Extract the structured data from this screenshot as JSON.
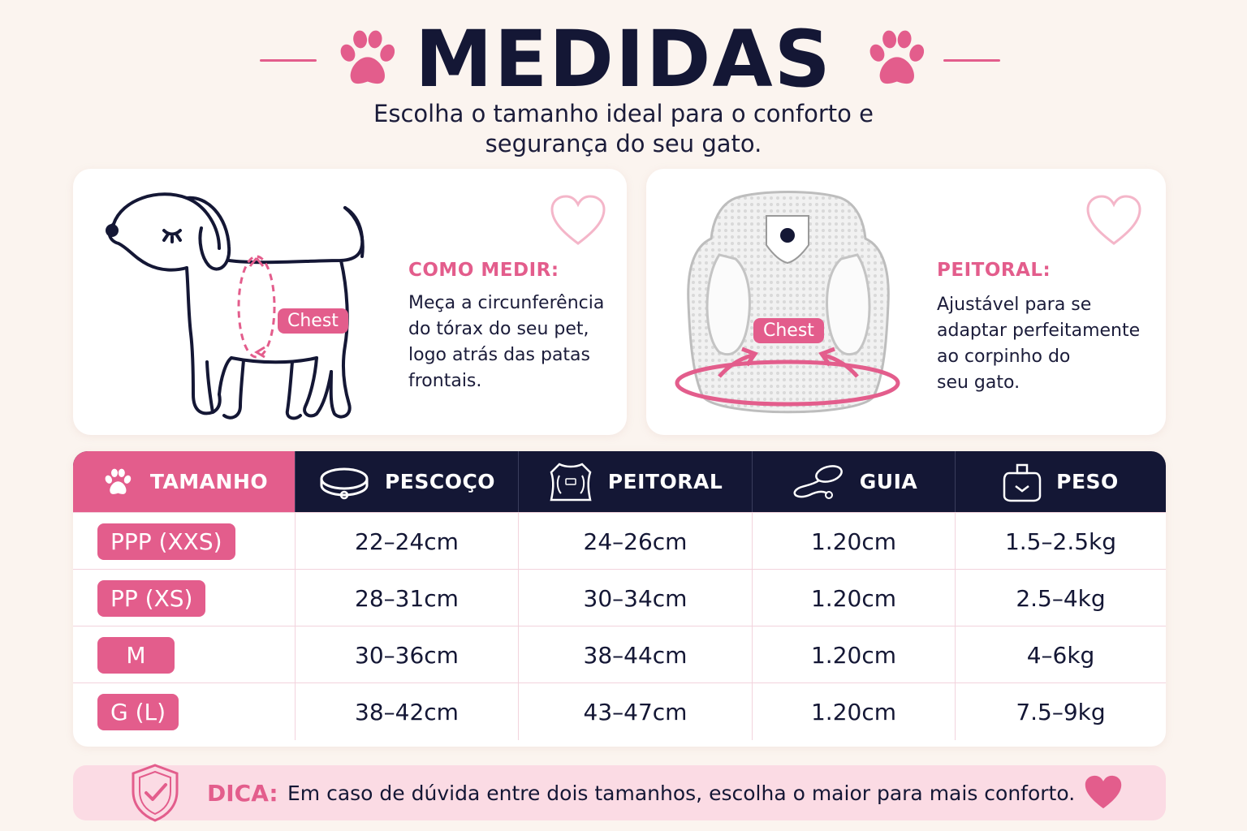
{
  "header": {
    "title": "MEDIDAS",
    "subtitle_line1": "Escolha o tamanho ideal para o conforto e",
    "subtitle_line2": "segurança do seu gato."
  },
  "card_measure": {
    "heading": "COMO MEDIR:",
    "text_line1": "Meça a circunferência",
    "text_line2": "do tórax do seu pet,",
    "text_line3": "logo atrás das patas",
    "text_line4": "frontais.",
    "tag": "Chest",
    "icon": "dog-illustration"
  },
  "card_harness": {
    "heading": "PEITORAL:",
    "text_line1": "Ajustável para se",
    "text_line2": "adaptar perfeitamente",
    "text_line3": "ao corpinho do",
    "text_line4": "seu gato.",
    "tag": "Chest",
    "icon": "harness-illustration"
  },
  "table": {
    "headers": {
      "size": "TAMANHO",
      "neck": "PESCOÇO",
      "chest": "PEITORAL",
      "leash": "GUIA",
      "weight": "PESO"
    },
    "rows": [
      {
        "size": "PPP (XXS)",
        "neck": "22–24cm",
        "chest": "24–26cm",
        "leash": "1.20cm",
        "weight": "1.5–2.5kg"
      },
      {
        "size": "PP (XS)",
        "neck": "28–31cm",
        "chest": "30–34cm",
        "leash": "1.20cm",
        "weight": "2.5–4kg"
      },
      {
        "size": "M",
        "neck": "30–36cm",
        "chest": "38–44cm",
        "leash": "1.20cm",
        "weight": "4–6kg"
      },
      {
        "size": "G (L)",
        "neck": "38–42cm",
        "chest": "43–47cm",
        "leash": "1.20cm",
        "weight": "7.5–9kg"
      }
    ]
  },
  "tip": {
    "label": "DICA:",
    "text": "Em caso de dúvida entre dois tamanhos, escolha o maior para mais conforto."
  },
  "colors": {
    "accent_pink": "#e35d8c",
    "navy": "#141735",
    "background": "#fbf4ef",
    "tip_background": "#fbdbe4"
  }
}
